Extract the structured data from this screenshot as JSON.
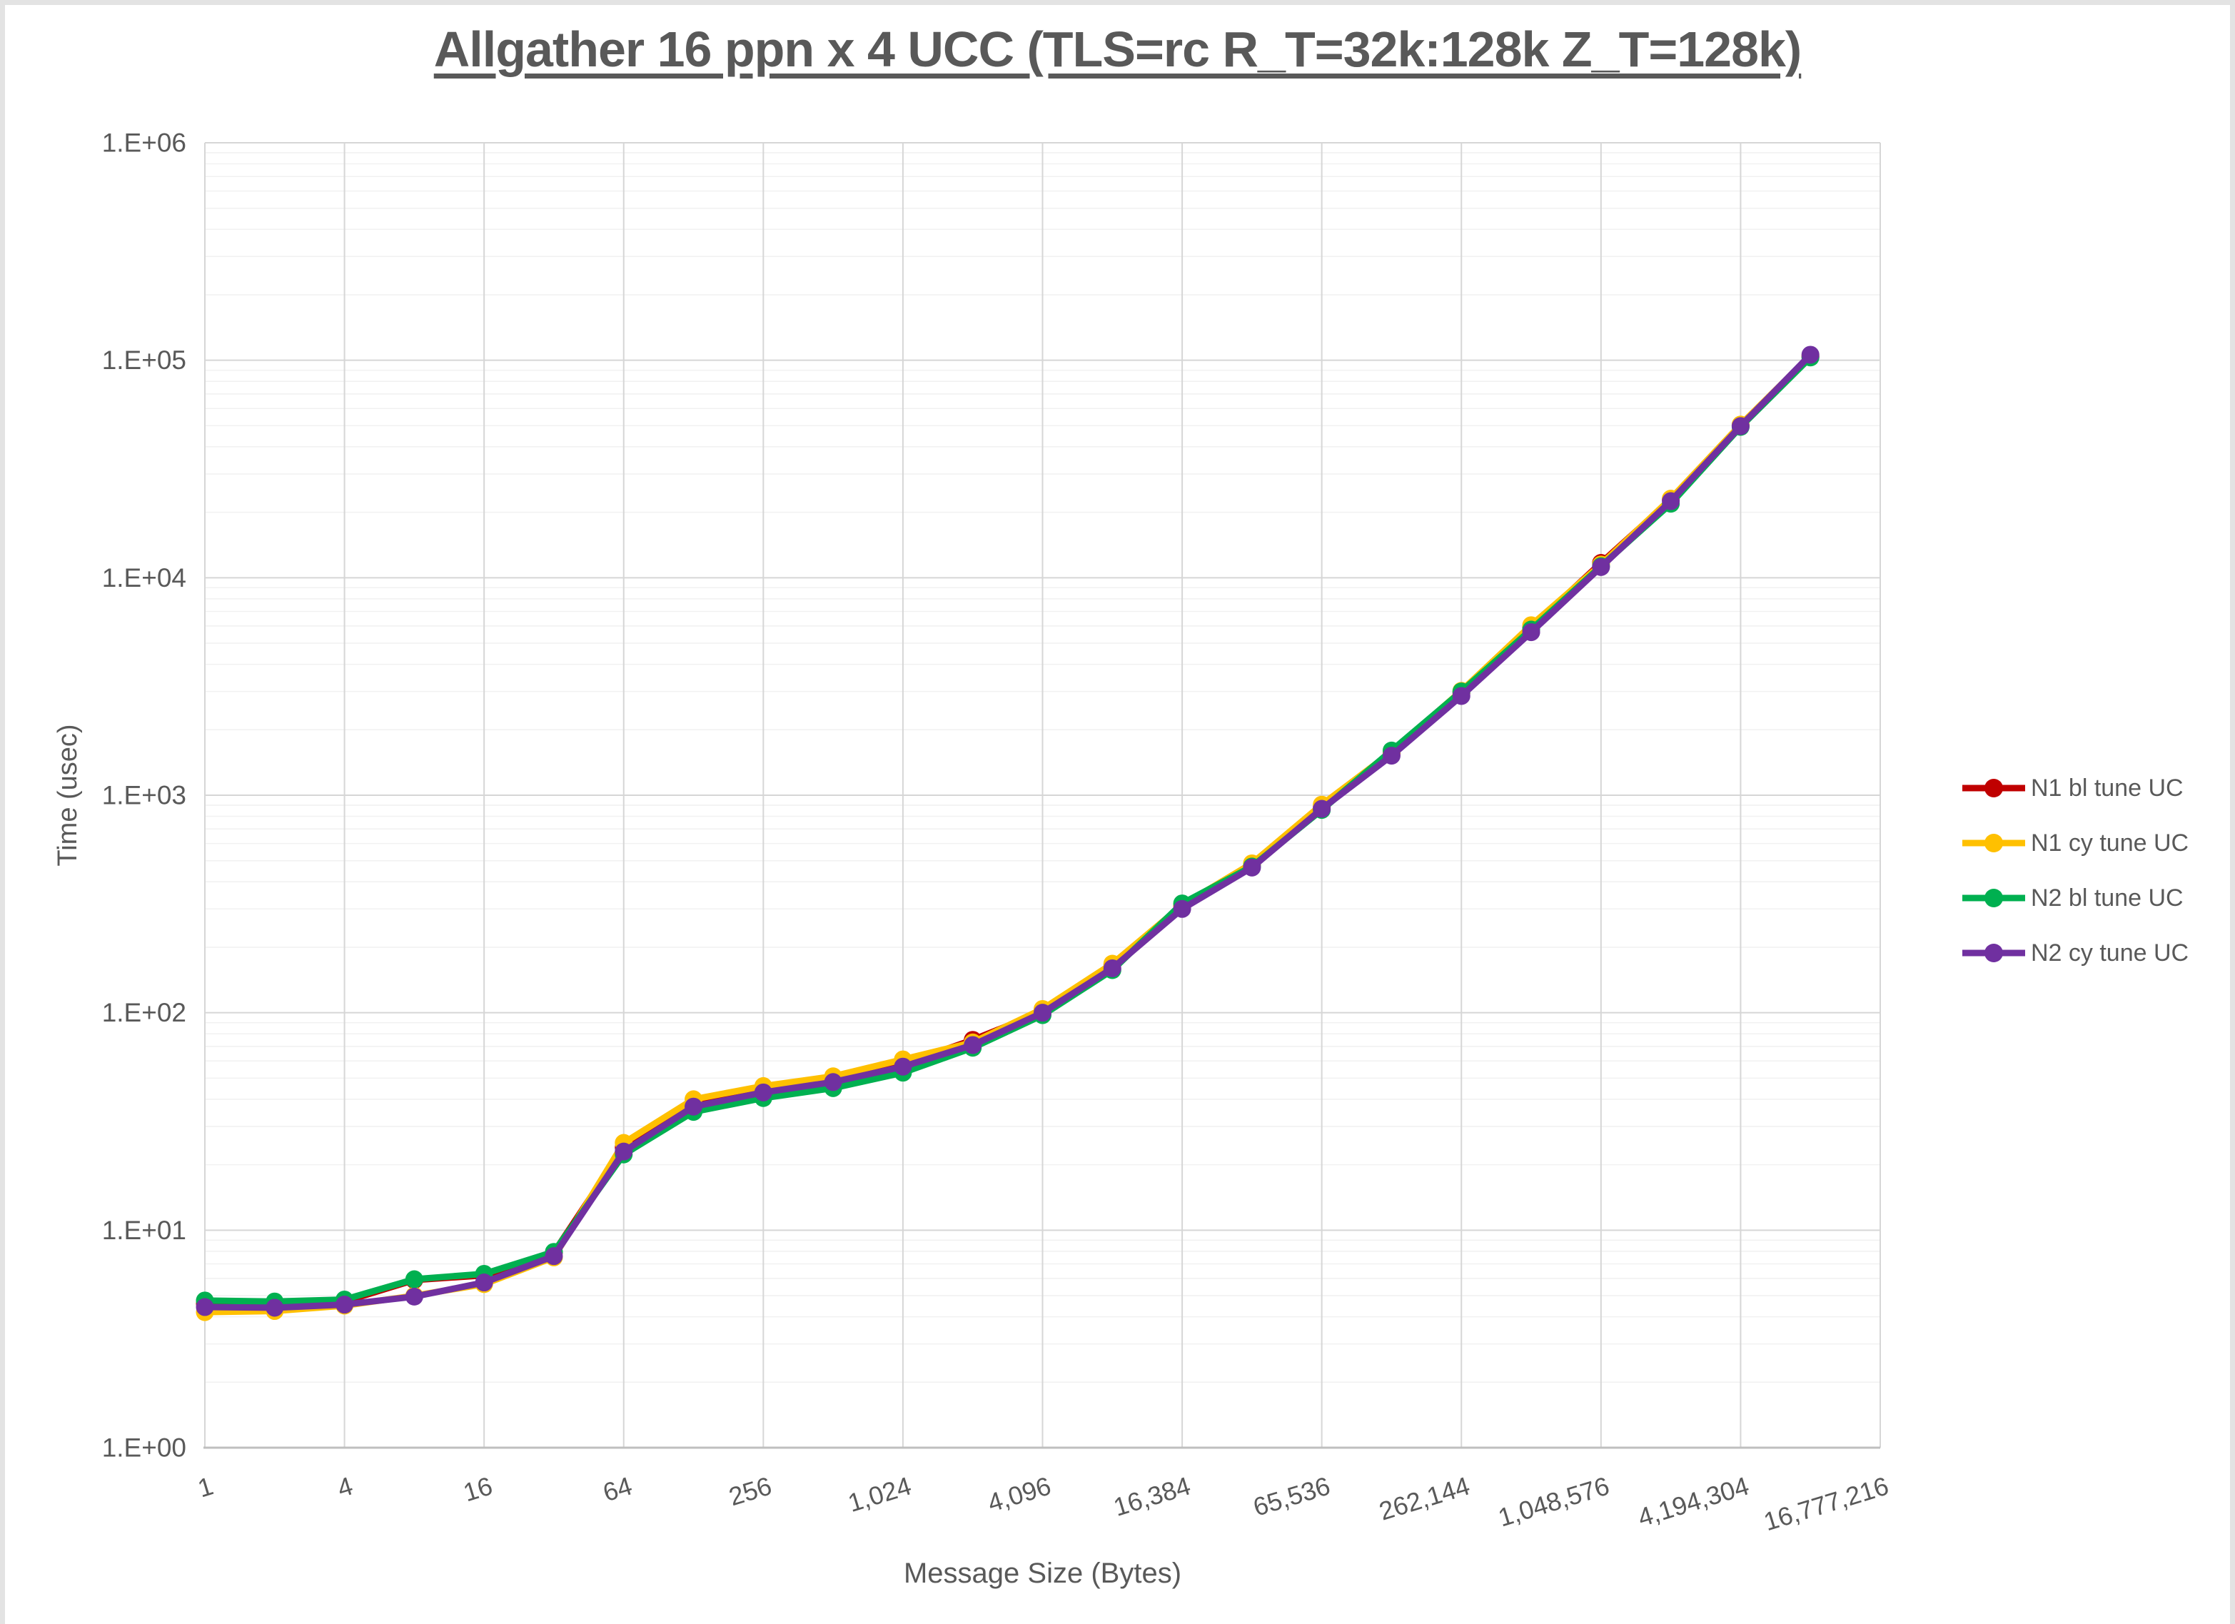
{
  "title": "Allgather 16 ppn x 4 UCC (TLS=rc R_T=32k:128k Z_T=128k)",
  "axes": {
    "x_title": "Message Size (Bytes)",
    "y_title": "Time (usec)"
  },
  "legend": {
    "position": "right",
    "items": [
      {
        "label": "N1 bl tune UC",
        "color": "#C00000"
      },
      {
        "label": "N1 cy tune UC",
        "color": "#FFC000"
      },
      {
        "label": "N2 bl tune UC",
        "color": "#00B050"
      },
      {
        "label": "N2 cy tune UC",
        "color": "#7030A0"
      }
    ]
  },
  "chart_data": {
    "type": "line",
    "title": "Allgather 16 ppn x 4 UCC (TLS=rc R_T=32k:128k Z_T=128k)",
    "xlabel": "Message Size (Bytes)",
    "ylabel": "Time (usec)",
    "x_scale": "log2",
    "y_scale": "log10",
    "xlim": [
      1,
      16777216
    ],
    "ylim": [
      1,
      1000000
    ],
    "grid": "major-and-minor-horizontal, major-vertical",
    "legend_position": "right",
    "x": [
      1,
      2,
      4,
      8,
      16,
      32,
      64,
      128,
      256,
      512,
      1024,
      2048,
      4096,
      8192,
      16384,
      32768,
      65536,
      131072,
      262144,
      524288,
      1048576,
      2097152,
      4194304,
      8388608
    ],
    "x_tick_labels": [
      "1",
      "4",
      "16",
      "64",
      "256",
      "1,024",
      "4,096",
      "16,384",
      "65,536",
      "262,144",
      "1,048,576",
      "4,194,304",
      "16,777,216"
    ],
    "y_tick_labels": [
      "1.E+00",
      "1.E+01",
      "1.E+02",
      "1.E+03",
      "1.E+04",
      "1.E+05",
      "1.E+06"
    ],
    "series": [
      {
        "name": "N1 bl tune UC",
        "color": "#C00000",
        "values": [
          4.6,
          4.6,
          4.7,
          5.9,
          6.2,
          7.9,
          24.0,
          38,
          44,
          49,
          58,
          75,
          101,
          166,
          308,
          478,
          880,
          1560,
          2950,
          5900,
          11700,
          22800,
          50000,
          104000
        ]
      },
      {
        "name": "N1 cy tune UC",
        "color": "#FFC000",
        "values": [
          4.2,
          4.25,
          4.5,
          5.0,
          5.65,
          7.5,
          25.2,
          40,
          46,
          51,
          61,
          73,
          104,
          168,
          312,
          486,
          905,
          1580,
          3020,
          6050,
          11500,
          23100,
          50600,
          105000
        ]
      },
      {
        "name": "N2 bl tune UC",
        "color": "#00B050",
        "values": [
          4.75,
          4.7,
          4.8,
          5.95,
          6.3,
          7.95,
          22.3,
          35,
          40.5,
          45,
          53,
          69,
          97.5,
          157,
          318,
          470,
          856,
          1605,
          3000,
          5780,
          11300,
          21900,
          49400,
          103000
        ]
      },
      {
        "name": "N2 cy tune UC",
        "color": "#7030A0",
        "values": [
          4.43,
          4.4,
          4.55,
          4.95,
          5.75,
          7.6,
          23.0,
          37,
          43,
          48,
          56.5,
          71,
          100,
          160,
          300,
          465,
          866,
          1520,
          2860,
          5620,
          11200,
          22500,
          49800,
          106000
        ]
      }
    ]
  }
}
